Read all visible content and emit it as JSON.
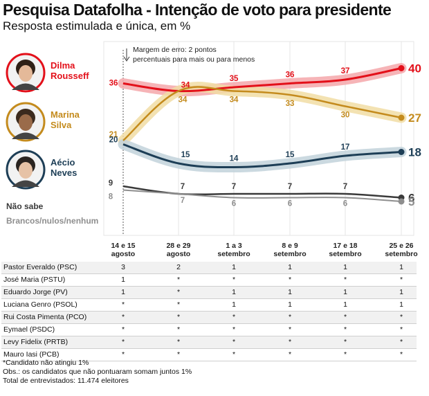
{
  "header": {
    "title": "Pesquisa Datafolha - Intenção de voto para presidente",
    "subtitle": "Resposta estimulada e única, em %"
  },
  "chart_data": {
    "type": "line",
    "x": [
      "14 e 15 agosto",
      "28 e 29 agosto",
      "1 a 3 setembro",
      "8 e 9 setembro",
      "17 e 18 setembro",
      "25 e 26 setembro"
    ],
    "x_lines": [
      [
        "14 e 15",
        "agosto"
      ],
      [
        "28 e 29",
        "agosto"
      ],
      [
        "1 a 3",
        "setembro"
      ],
      [
        "8 e 9",
        "setembro"
      ],
      [
        "17 e 18",
        "setembro"
      ],
      [
        "25 e 26",
        "setembro"
      ]
    ],
    "annotation": [
      "Margem de erro: 2 pontos",
      "percentuais para mais ou para menos"
    ],
    "series": [
      {
        "name": "Dilma Rousseff",
        "name_lines": [
          "Dilma",
          "Rousseff"
        ],
        "values": [
          36,
          34,
          35,
          36,
          37,
          40
        ],
        "color": "#e3101a",
        "band_color": "#f4a7aa"
      },
      {
        "name": "Marina Silva",
        "name_lines": [
          "Marina",
          "Silva"
        ],
        "values": [
          21,
          34,
          34,
          33,
          30,
          27
        ],
        "color": "#c48b1d",
        "band_color": "#f1dda5"
      },
      {
        "name": "Aécio Neves",
        "name_lines": [
          "Aécio",
          "Neves"
        ],
        "values": [
          20,
          15,
          14,
          15,
          17,
          18
        ],
        "color": "#1d3e56",
        "band_color": "#c2d2da"
      },
      {
        "name": "Não sabe",
        "name_lines": [
          "Não sabe"
        ],
        "values": [
          9,
          7,
          7,
          7,
          7,
          6
        ],
        "color": "#3a3a3a"
      },
      {
        "name": "Brancos/nulos/nenhum",
        "name_lines": [
          "Brancos/nulos/nenhum"
        ],
        "values": [
          8,
          7,
          6,
          6,
          6,
          5
        ],
        "color": "#8e8e8e"
      }
    ]
  },
  "table": {
    "rows": [
      {
        "name": "Pastor Everaldo (PSC)",
        "values": [
          "3",
          "2",
          "1",
          "1",
          "1",
          "1"
        ]
      },
      {
        "name": "José Maria (PSTU)",
        "values": [
          "1",
          "*",
          "*",
          "*",
          "*",
          "*"
        ]
      },
      {
        "name": "Eduardo Jorge (PV)",
        "values": [
          "1",
          "*",
          "1",
          "1",
          "1",
          "1"
        ]
      },
      {
        "name": "Luciana Genro (PSOL)",
        "values": [
          "*",
          "*",
          "1",
          "1",
          "1",
          "1"
        ]
      },
      {
        "name": "Rui Costa Pimenta (PCO)",
        "values": [
          "*",
          "*",
          "*",
          "*",
          "*",
          "*"
        ]
      },
      {
        "name": "Eymael (PSDC)",
        "values": [
          "*",
          "*",
          "*",
          "*",
          "*",
          "*"
        ]
      },
      {
        "name": "Levy Fidelix (PRTB)",
        "values": [
          "*",
          "*",
          "*",
          "*",
          "*",
          "*"
        ]
      },
      {
        "name": "Mauro Iasi (PCB)",
        "values": [
          "*",
          "*",
          "*",
          "*",
          "*",
          "*"
        ]
      }
    ]
  },
  "notes": {
    "footnote": "*Candidato não atingiu 1%",
    "obs": "Obs.: os candidatos que não pontuaram somam juntos 1%",
    "total": "Total de entrevistados: 11.474 eleitores"
  }
}
